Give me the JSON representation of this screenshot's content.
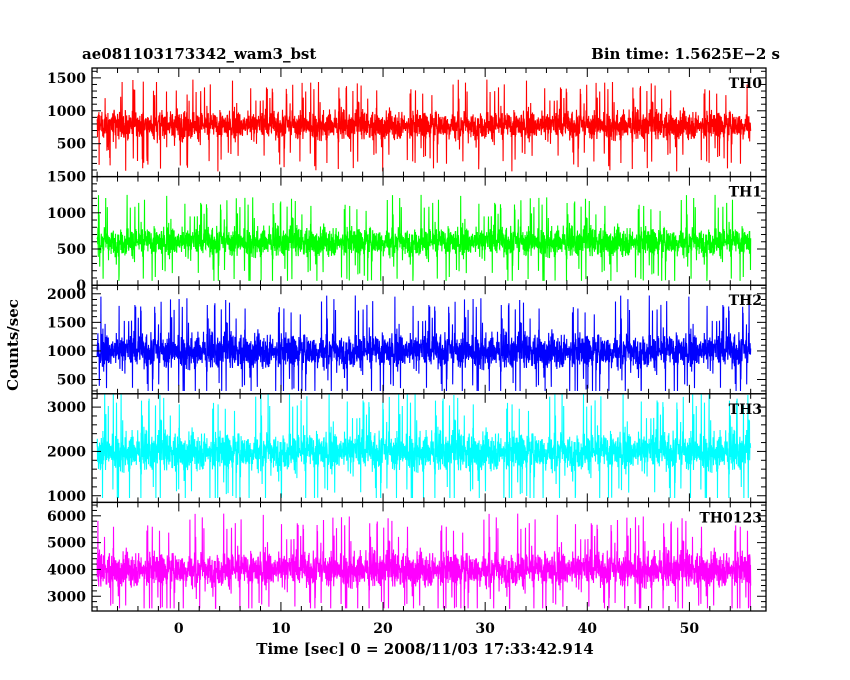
{
  "header": {
    "title": "ae081103173342_wam3_bst",
    "bin_time": "Bin time: 1.5625E−2 s"
  },
  "chart_data": {
    "type": "line",
    "xlabel": "Time [sec] 0 = 2008/11/03 17:33:42.914",
    "ylabel": "Counts/sec",
    "xlim": [
      -8.5,
      57.5
    ],
    "x_range": [
      -8,
      56
    ],
    "x_ticks": [
      0,
      10,
      20,
      30,
      40,
      50
    ],
    "grid": false,
    "panels": [
      {
        "name": "TH0",
        "color": "#ff0000",
        "ylim": [
          0,
          1650
        ],
        "yticks": [
          500,
          1000,
          1500
        ],
        "mean": 780,
        "noise_sd": 150,
        "min_level": 80,
        "max_level": 1650
      },
      {
        "name": "TH1",
        "color": "#00ff00",
        "ylim": [
          0,
          1500
        ],
        "yticks": [
          0,
          500,
          1000,
          1500
        ],
        "mean": 600,
        "noise_sd": 140,
        "min_level": 60,
        "max_level": 1500
      },
      {
        "name": "TH2",
        "color": "#0000ff",
        "ylim": [
          250,
          2150
        ],
        "yticks": [
          500,
          1000,
          1500,
          2000
        ],
        "mean": 1000,
        "noise_sd": 210,
        "min_level": 300,
        "max_level": 2150
      },
      {
        "name": "TH3",
        "color": "#00ffff",
        "ylim": [
          850,
          3300
        ],
        "yticks": [
          1000,
          2000,
          3000
        ],
        "mean": 2000,
        "noise_sd": 300,
        "min_level": 950,
        "max_level": 3300
      },
      {
        "name": "TH0123",
        "color": "#ff00ff",
        "ylim": [
          2450,
          6500
        ],
        "yticks": [
          3000,
          4000,
          5000,
          6000
        ],
        "mean": 4000,
        "noise_sd": 450,
        "min_level": 2550,
        "max_level": 6500
      }
    ]
  }
}
